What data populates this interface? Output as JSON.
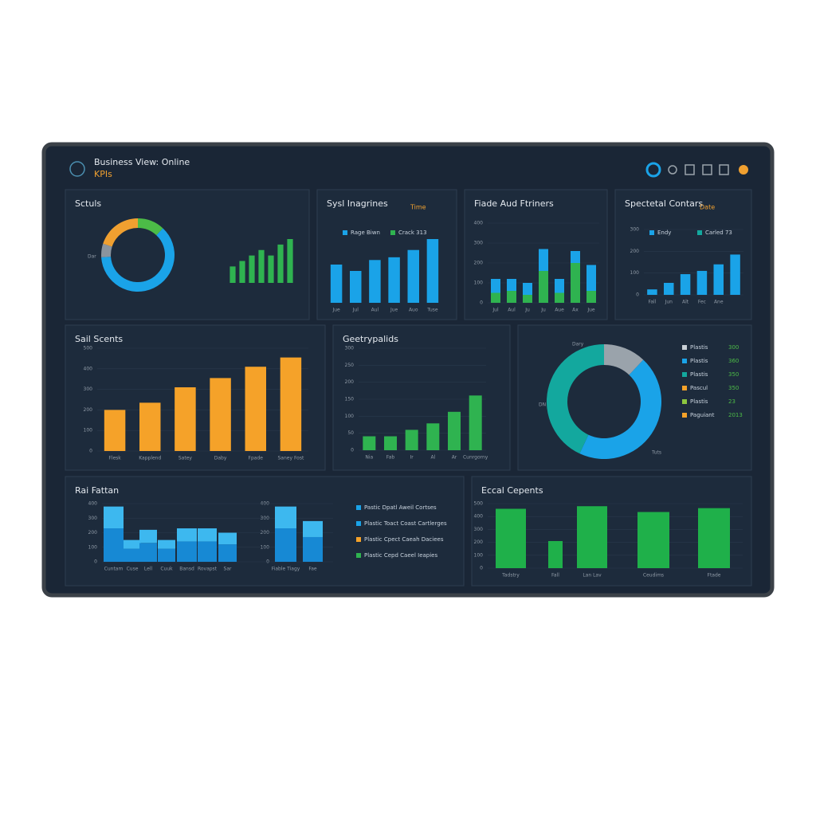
{
  "header": {
    "title": "Business View: Online",
    "subtitle": "KPIs"
  },
  "chart_data": [
    {
      "type": "pie",
      "title": "Sctuls",
      "values": [
        12,
        62,
        6,
        20
      ],
      "colors": [
        "#4cbb47",
        "#1aa3e8",
        "#8a949e",
        "#f0a030"
      ],
      "annotations": [
        "Dar"
      ]
    },
    {
      "type": "bar",
      "values": [
        3,
        4,
        5,
        6,
        5,
        7,
        8
      ],
      "color": "#2fb350"
    },
    {
      "type": "bar",
      "title": "Sysl Inagrines",
      "tag": "Time",
      "categories": [
        "Jue",
        "Jul",
        "Aul",
        "Jue",
        "Auo",
        "Tuse"
      ],
      "values": [
        42,
        35,
        47,
        50,
        58,
        70
      ],
      "color": "#1aa3e8",
      "legend": [
        {
          "name": "Rage Biwn",
          "color": "#1aa3e8"
        },
        {
          "name": "Crack 313",
          "color": "#2fb350"
        }
      ]
    },
    {
      "type": "bar",
      "stacked": true,
      "title": "Fiade Aud Ftriners",
      "categories": [
        "Jul",
        "Aul",
        "Ju",
        "Ju",
        "Aue",
        "Ax",
        "Jue"
      ],
      "series": [
        {
          "color": "#2fb350",
          "values": [
            50,
            60,
            40,
            160,
            50,
            200,
            60
          ]
        },
        {
          "color": "#1aa3e8",
          "values": [
            70,
            60,
            60,
            110,
            70,
            60,
            130
          ]
        }
      ],
      "ylim": [
        0,
        400
      ],
      "yticks": [
        0,
        100,
        200,
        300,
        400
      ],
      "grid": true
    },
    {
      "type": "bar",
      "title": "Spectetal Contars",
      "tag": "Date",
      "categories": [
        "Fall",
        "Jun",
        "Alt",
        "Fec",
        "Ane",
        null
      ],
      "values": [
        25,
        55,
        95,
        110,
        140,
        185
      ],
      "color": "#1aa3e8",
      "ylim": [
        0,
        300
      ],
      "yticks": [
        0,
        100,
        200,
        300
      ],
      "grid": true,
      "legend": [
        {
          "name": "Endy",
          "color": "#1aa3e8"
        },
        {
          "name": "Carled 73",
          "color": "#13a89e"
        }
      ]
    },
    {
      "type": "bar",
      "title": "Sail Scents",
      "categories": [
        "Flesk",
        "Kapplend",
        "Satey",
        "Daby",
        "Fpade",
        "Saney Fost"
      ],
      "values": [
        200,
        235,
        310,
        355,
        410,
        455
      ],
      "color": "#f5a229",
      "ylim": [
        0,
        500
      ],
      "yticks": [
        0,
        100,
        200,
        300,
        400,
        500
      ],
      "grid": true
    },
    {
      "type": "bar",
      "title": "Geetrypalids",
      "categories": [
        "Nia",
        "Fab",
        "Ir",
        "Al",
        "Ar",
        "Cunrgorny"
      ],
      "values": [
        41,
        41,
        60,
        79,
        113,
        161
      ],
      "color": "#2fb350",
      "ylim": [
        0,
        300
      ],
      "yticks": [
        0,
        50,
        100,
        150,
        200,
        250,
        300
      ],
      "grid": true
    },
    {
      "type": "pie",
      "values": [
        12,
        45,
        43
      ],
      "colors": [
        "#9aa3ab",
        "#1aa3e8",
        "#13a89e"
      ],
      "annotations": [
        "Dary",
        "DN",
        "Tuts"
      ],
      "legend": [
        {
          "name": "Plastis",
          "value": 300,
          "color": "#c9d0d6"
        },
        {
          "name": "Plastis",
          "value": 360,
          "color": "#1aa3e8"
        },
        {
          "name": "Plastis",
          "value": 350,
          "color": "#13a89e"
        },
        {
          "name": "Pascul",
          "value": 350,
          "color": "#f5a229"
        },
        {
          "name": "Plastis",
          "value": 23,
          "color": "#8cc63f"
        },
        {
          "name": "Paguiant",
          "value": 2013,
          "color": "#f5a229"
        }
      ]
    },
    {
      "type": "bar",
      "stacked": true,
      "title": "Rai Fattan",
      "categories": [
        "Cuntam",
        "Cuse",
        "Lell",
        "Cuuk",
        "Bansd",
        "Rovapst",
        "Sar",
        "Fiable Tiagy",
        "Fae"
      ],
      "series": [
        {
          "color": "#1789d4",
          "values": [
            230,
            90,
            130,
            90,
            140,
            140,
            120,
            230,
            170
          ]
        },
        {
          "color": "#3db8ef",
          "values": [
            150,
            60,
            90,
            60,
            90,
            90,
            80,
            150,
            110
          ]
        }
      ],
      "ylim": [
        0,
        400
      ],
      "yticks": [
        0,
        100,
        200,
        300,
        400
      ],
      "grid": true,
      "legend": [
        {
          "name": "Pastic Dpatl Aweil Cortses",
          "color": "#1aa3e8"
        },
        {
          "name": "Plastic Toact Coast Cartlerges",
          "color": "#1aa3e8"
        },
        {
          "name": "Plastic Cpect Caeah Daciees",
          "color": "#f5a229"
        },
        {
          "name": "Plastic Cepd Caeel Ieapies",
          "color": "#2fb350"
        }
      ]
    },
    {
      "type": "bar",
      "title": "Eccal Cepents",
      "categories": [
        "Tadstry",
        "Fall",
        "Lan Lav",
        "Ceudims",
        "Ftade"
      ],
      "values": [
        460,
        210,
        480,
        435,
        465
      ],
      "color": "#1fb04a",
      "ylim": [
        0,
        500
      ],
      "yticks": [
        0,
        100,
        200,
        300,
        400,
        500
      ],
      "grid": true
    }
  ]
}
